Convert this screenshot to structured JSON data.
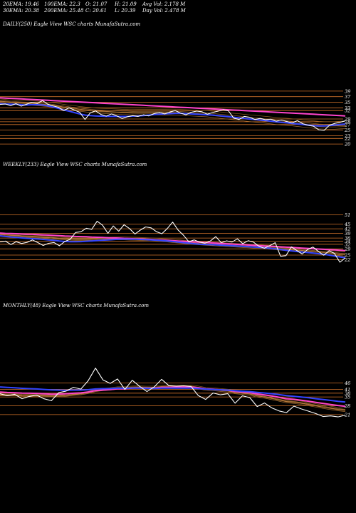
{
  "header": {
    "row1": [
      "20EMA: 19.46",
      "100EMA: 22.3",
      "O: 21.07",
      "H: 21.09",
      "Avg Vol: 2.178  M"
    ],
    "row2": [
      "30EMA: 20.38",
      "200EMA: 25.48",
      "C: 20.61",
      "L: 20.39",
      "Day Vol: 2.478  M"
    ]
  },
  "chart_data": [
    {
      "type": "line",
      "title": "DAILY(250) Eagle  View  WSC charts MunafaSutra.com",
      "yticks": [
        "39",
        "37",
        "35",
        "33",
        "32",
        "29",
        "28",
        "27",
        "25",
        "23",
        "22",
        "20"
      ],
      "ylim": [
        19,
        40
      ],
      "colors": {
        "price": "#ffffff",
        "ema_fast": "#3344ff",
        "ema_slow": "#ff44cc",
        "grid": "#d2732a"
      },
      "series": [
        {
          "role": "price",
          "values": [
            34.2,
            34.4,
            33.8,
            34.5,
            33.6,
            34.3,
            35.0,
            34.6,
            35.6,
            34.3,
            33.7,
            33.2,
            32.0,
            33.0,
            32.2,
            31.4,
            28.8,
            31.2,
            31.9,
            30.6,
            30.0,
            30.8,
            30.1,
            29.2,
            29.8,
            30.2,
            29.9,
            30.5,
            30.1,
            30.9,
            31.4,
            30.8,
            31.5,
            32.0,
            31.1,
            30.5,
            31.4,
            31.8,
            31.6,
            30.7,
            31.3,
            31.8,
            32.3,
            31.9,
            29.3,
            28.8,
            29.9,
            29.6,
            28.8,
            29.2,
            28.7,
            28.9,
            28.2,
            28.6,
            28.1,
            27.6,
            28.4,
            27.3,
            26.7,
            26.4,
            25.1,
            24.9,
            26.7,
            27.4,
            27.8,
            28.3
          ]
        },
        {
          "role": "ema_fast",
          "values": [
            34.5,
            34.4,
            34.3,
            34.3,
            34.1,
            34.0,
            34.1,
            34.1,
            34.0,
            33.7,
            33.3,
            32.8,
            32.2,
            31.8,
            31.3,
            30.8,
            30.4,
            30.2,
            30.1,
            30.0,
            29.9,
            29.9,
            29.9,
            29.9,
            29.9,
            30.0,
            30.1,
            30.2,
            30.4,
            30.6,
            30.7,
            30.8,
            30.9,
            31.0,
            31.0,
            30.9,
            30.8,
            30.7,
            30.6,
            30.5,
            30.4,
            30.2,
            30.0,
            29.8,
            29.6,
            29.4,
            29.2,
            29.0,
            28.8,
            28.6,
            28.4,
            28.2,
            28.0,
            27.8,
            27.6,
            27.4,
            27.2,
            27.0,
            26.8,
            26.6,
            26.5,
            26.5,
            26.6,
            26.8,
            27.0,
            27.2
          ]
        },
        {
          "role": "ema_slow",
          "values": [
            36.6,
            36.5,
            36.4,
            36.3,
            36.2,
            36.1,
            36.0,
            35.9,
            35.8,
            35.7,
            35.6,
            35.5,
            35.4,
            35.3,
            35.2,
            35.1,
            35.0,
            34.9,
            34.8,
            34.7,
            34.6,
            34.5,
            34.4,
            34.3,
            34.2,
            34.1,
            34.0,
            33.9,
            33.8,
            33.7,
            33.6,
            33.5,
            33.4,
            33.3,
            33.2,
            33.1,
            33.0,
            32.9,
            32.8,
            32.7,
            32.6,
            32.5,
            32.4,
            32.3,
            32.2,
            32.1,
            32.0,
            31.9,
            31.8,
            31.7,
            31.6,
            31.5,
            31.4,
            31.3,
            31.2,
            31.1,
            31.0,
            30.9,
            30.8,
            30.7,
            30.6,
            30.5,
            30.4,
            30.3,
            30.2,
            30.1
          ]
        },
        {
          "role": "ema_mid",
          "values": [
            35.4,
            35.2,
            35.0,
            34.9,
            34.8,
            34.7,
            34.6,
            34.5,
            34.3,
            34.1,
            33.9,
            33.6,
            33.3,
            33.0,
            32.8,
            32.5,
            32.3,
            32.1,
            31.9,
            31.8,
            31.7,
            31.6,
            31.5,
            31.4,
            31.4,
            31.3,
            31.3,
            31.3,
            31.3,
            31.3,
            31.3,
            31.3,
            31.3,
            31.3,
            31.2,
            31.1,
            31.0,
            30.9,
            30.8,
            30.7,
            30.5,
            30.3,
            30.1,
            29.9,
            29.7,
            29.5,
            29.3,
            29.1,
            28.9,
            28.7,
            28.5,
            28.3,
            28.1,
            27.9,
            27.8,
            27.6,
            27.4,
            27.2,
            27.0,
            26.8,
            26.6,
            26.5,
            26.5,
            26.5,
            26.6,
            26.7
          ]
        }
      ]
    },
    {
      "type": "line",
      "title": "WEEKLY(233) Eagle  View  WSC charts MunafaSutra.com",
      "yticks": [
        "51",
        "45",
        "42",
        "39",
        "36",
        "34",
        "32",
        "29",
        "25",
        "22"
      ],
      "ylim": [
        19,
        54
      ],
      "colors": {
        "price": "#ffffff",
        "ema_fast": "#3344ff",
        "ema_slow": "#ff44cc",
        "grid": "#d2732a"
      },
      "series": [
        {
          "role": "price",
          "values": [
            33.5,
            34.0,
            31.8,
            33.6,
            32.5,
            33.2,
            34.8,
            33.1,
            31.2,
            32.6,
            33.1,
            31.0,
            33.8,
            35.1,
            39.6,
            40.1,
            42.3,
            41.6,
            46.9,
            44.3,
            39.1,
            43.8,
            40.4,
            44.6,
            42.1,
            38.6,
            41.1,
            43.2,
            42.6,
            40.1,
            38.8,
            42.1,
            46.3,
            41.2,
            37.8,
            33.6,
            34.8,
            33.4,
            32.7,
            34.1,
            36.9,
            33.0,
            34.2,
            33.4,
            35.5,
            32.4,
            34.3,
            33.3,
            30.6,
            29.4,
            31.1,
            33.0,
            24.2,
            24.6,
            30.3,
            28.0,
            25.7,
            28.6,
            30.2,
            27.4,
            24.9,
            27.8,
            26.0,
            20.4,
            23.2
          ]
        },
        {
          "role": "ema_fast",
          "values": [
            37.4,
            37.0,
            36.7,
            36.4,
            36.1,
            35.8,
            35.6,
            35.4,
            35.1,
            34.8,
            34.5,
            34.1,
            33.8,
            33.6,
            33.6,
            33.7,
            33.9,
            34.1,
            34.4,
            34.6,
            34.8,
            35.0,
            35.2,
            35.3,
            35.3,
            35.2,
            35.1,
            35.0,
            34.8,
            34.6,
            34.4,
            34.1,
            33.8,
            33.4,
            33.0,
            32.7,
            32.3,
            32.0,
            31.8,
            31.7,
            31.6,
            31.4,
            31.2,
            31.0,
            30.8,
            30.6,
            30.4,
            30.2,
            30.0,
            29.7,
            29.4,
            29.1,
            28.6,
            28.1,
            27.7,
            27.3,
            26.9,
            26.6,
            26.3,
            25.9,
            25.5,
            25.0,
            24.4,
            23.8,
            23.3
          ]
        },
        {
          "role": "ema_slow",
          "values": [
            39.2,
            39.0,
            38.9,
            38.8,
            38.6,
            38.5,
            38.4,
            38.2,
            38.0,
            37.9,
            37.7,
            37.5,
            37.3,
            37.2,
            37.0,
            36.9,
            36.8,
            36.6,
            36.5,
            36.4,
            36.2,
            36.1,
            36.0,
            35.8,
            35.7,
            35.5,
            35.4,
            35.2,
            35.1,
            34.9,
            34.7,
            34.5,
            34.3,
            34.1,
            33.9,
            33.7,
            33.5,
            33.3,
            33.1,
            32.9,
            32.7,
            32.5,
            32.3,
            32.1,
            31.9,
            31.7,
            31.5,
            31.3,
            31.1,
            30.9,
            30.7,
            30.5,
            30.3,
            30.1,
            29.9,
            29.7,
            29.5,
            29.3,
            29.1,
            28.9,
            28.7,
            28.5,
            28.3,
            28.1,
            27.9
          ]
        },
        {
          "role": "ema_mid",
          "values": [
            38.3,
            38.0,
            37.8,
            37.6,
            37.3,
            37.1,
            36.9,
            36.7,
            36.5,
            36.3,
            36.0,
            35.7,
            35.5,
            35.3,
            35.2,
            35.2,
            35.2,
            35.3,
            35.4,
            35.5,
            35.5,
            35.6,
            35.6,
            35.6,
            35.5,
            35.4,
            35.3,
            35.1,
            34.9,
            34.7,
            34.5,
            34.3,
            34.0,
            33.7,
            33.4,
            33.1,
            32.8,
            32.5,
            32.3,
            32.1,
            31.9,
            31.7,
            31.5,
            31.3,
            31.1,
            30.9,
            30.7,
            30.5,
            30.3,
            30.0,
            29.8,
            29.5,
            29.2,
            28.9,
            28.6,
            28.3,
            28.0,
            27.7,
            27.4,
            27.1,
            26.8,
            26.5,
            26.1,
            25.7,
            25.4
          ]
        }
      ]
    },
    {
      "type": "line",
      "title": "MONTHLY(48) Eagle  View  WSC charts MunafaSutra.com",
      "yticks": [
        "46",
        "41",
        "38",
        "35",
        "28",
        "21"
      ],
      "ylim": [
        17,
        70
      ],
      "colors": {
        "price": "#ffffff",
        "ema_fast": "#3344ff",
        "ema_slow": "#ff44cc",
        "grid": "#d2732a"
      },
      "series": [
        {
          "role": "price",
          "values": [
            37.6,
            36.0,
            37.1,
            33.6,
            35.4,
            36.4,
            33.5,
            32.0,
            38.4,
            39.6,
            42.6,
            41.2,
            47.8,
            57.8,
            48.5,
            45.7,
            49.2,
            40.9,
            48.2,
            43.4,
            39.2,
            43.0,
            48.9,
            43.9,
            43.5,
            43.8,
            43.3,
            36.0,
            33.0,
            38.1,
            36.7,
            37.5,
            30.0,
            35.9,
            34.4,
            27.4,
            30.2,
            26.3,
            23.9,
            22.6,
            27.7,
            25.5,
            23.7,
            21.8,
            19.5,
            20.0,
            19.2,
            20.6
          ]
        },
        {
          "role": "ema_fast",
          "values": [
            42.9,
            42.5,
            42.2,
            41.8,
            41.5,
            41.3,
            40.9,
            40.5,
            40.4,
            40.3,
            40.4,
            40.4,
            40.7,
            41.3,
            41.5,
            41.6,
            41.9,
            41.8,
            42.0,
            42.0,
            41.8,
            41.7,
            41.9,
            41.9,
            41.9,
            41.9,
            41.9,
            41.6,
            41.2,
            40.9,
            40.6,
            40.4,
            39.9,
            39.5,
            39.2,
            38.6,
            38.1,
            37.5,
            36.8,
            36.0,
            35.5,
            34.9,
            34.3,
            33.6,
            32.9,
            32.2,
            31.5,
            30.9
          ]
        },
        {
          "role": "ema_slow",
          "values": [
            38.8,
            38.5,
            38.3,
            38.0,
            37.9,
            37.8,
            37.5,
            37.2,
            37.3,
            37.5,
            37.9,
            38.2,
            38.9,
            40.0,
            40.4,
            40.8,
            41.4,
            41.4,
            41.9,
            42.1,
            41.9,
            42.0,
            42.5,
            42.6,
            42.7,
            42.8,
            42.8,
            42.2,
            41.4,
            41.1,
            40.6,
            40.3,
            39.3,
            38.9,
            38.4,
            37.3,
            36.6,
            35.7,
            34.7,
            33.6,
            33.1,
            32.4,
            31.6,
            30.7,
            29.8,
            29.0,
            28.2,
            27.6
          ]
        },
        {
          "role": "ema_mid",
          "values": [
            36.5,
            36.4,
            36.5,
            36.2,
            36.1,
            36.1,
            35.9,
            35.6,
            35.8,
            36.2,
            36.9,
            37.4,
            38.4,
            40.0,
            40.7,
            41.2,
            42.0,
            41.9,
            42.5,
            42.6,
            42.3,
            42.4,
            43.0,
            43.1,
            43.2,
            43.2,
            43.2,
            42.3,
            41.2,
            40.9,
            40.3,
            39.8,
            38.5,
            38.0,
            37.4,
            35.9,
            35.0,
            33.9,
            32.7,
            31.4,
            30.9,
            30.1,
            29.1,
            28.1,
            27.0,
            26.1,
            25.2,
            24.6
          ]
        }
      ]
    }
  ]
}
